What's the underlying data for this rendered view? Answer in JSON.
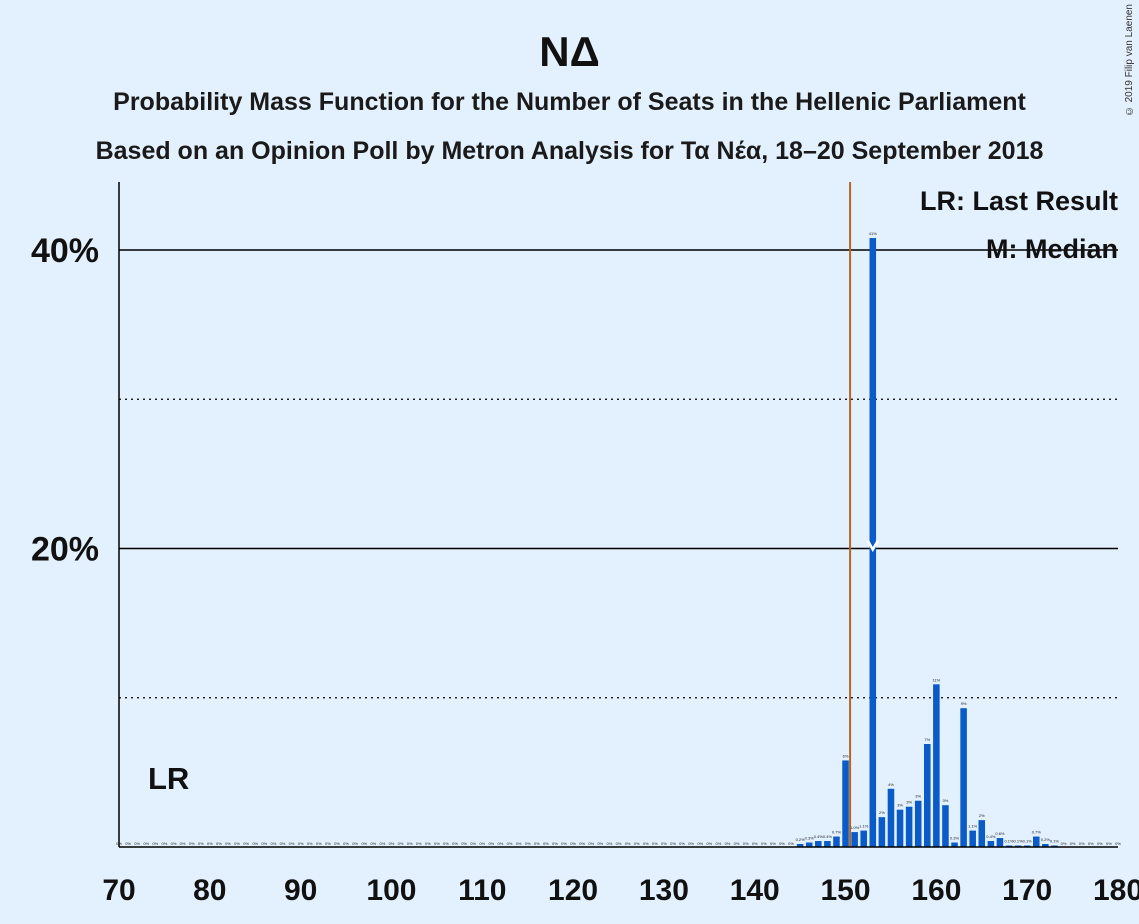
{
  "header": {
    "title": "ΝΔ",
    "subtitle1": "Probability Mass Function for the Number of Seats in the Hellenic Parliament",
    "subtitle2": "Based on an Opinion Poll by Metron Analysis for Τα Νέα, 18–20 September 2018",
    "copyright": "© 2019 Filip van Laenen"
  },
  "legend": {
    "last_result": "LR: Last Result",
    "median": "M: Median"
  },
  "lr_label": "LR",
  "median_marker": "M",
  "colors": {
    "background": "#e3f0fd",
    "bar": "#0a5ac8",
    "last_result_line": "#b5651d",
    "grid": "#000000"
  },
  "chart_data": {
    "type": "bar",
    "title": "ΝΔ",
    "x_range": [
      70,
      180
    ],
    "xticks": [
      70,
      80,
      90,
      100,
      110,
      120,
      130,
      140,
      150,
      160,
      170,
      180
    ],
    "xtick_labels": [
      "70",
      "80",
      "90",
      "100",
      "110",
      "120",
      "130",
      "140",
      "150",
      "160",
      "170",
      "180"
    ],
    "ylim": [
      0,
      44
    ],
    "yticks_solid": [
      20,
      40
    ],
    "ytick_labels": [
      "20%",
      "40%"
    ],
    "yticks_dotted": [
      10,
      30
    ],
    "last_result": 151,
    "median": 153,
    "x": [
      145,
      146,
      147,
      148,
      149,
      150,
      151,
      152,
      153,
      154,
      155,
      156,
      157,
      158,
      159,
      160,
      161,
      162,
      163,
      164,
      165,
      166,
      167,
      168,
      169,
      170,
      171,
      172,
      173
    ],
    "values": [
      0.2,
      0.3,
      0.4,
      0.4,
      0.7,
      5.8,
      1.0,
      1.1,
      40.8,
      2.0,
      3.9,
      2.5,
      2.7,
      3.1,
      6.9,
      10.9,
      2.8,
      0.3,
      9.3,
      1.1,
      1.8,
      0.4,
      0.6,
      0.1,
      0.1,
      0.1,
      0.7,
      0.2,
      0.1
    ],
    "value_labels": [
      "0.2%",
      "0.3%",
      "0.4%",
      "0.4%",
      "0.7%",
      "6%",
      "1.0%",
      "1.1%",
      "41%",
      "2%",
      "4%",
      "3%",
      "3%",
      "3%",
      "7%",
      "11%",
      "3%",
      "0.3%",
      "9%",
      "1.1%",
      "2%",
      "0.4%",
      "0.6%",
      "0.1%",
      "0.1%",
      "0.1%",
      "0.7%",
      "0.2%",
      "0.1%"
    ],
    "zero_label": "0%"
  }
}
